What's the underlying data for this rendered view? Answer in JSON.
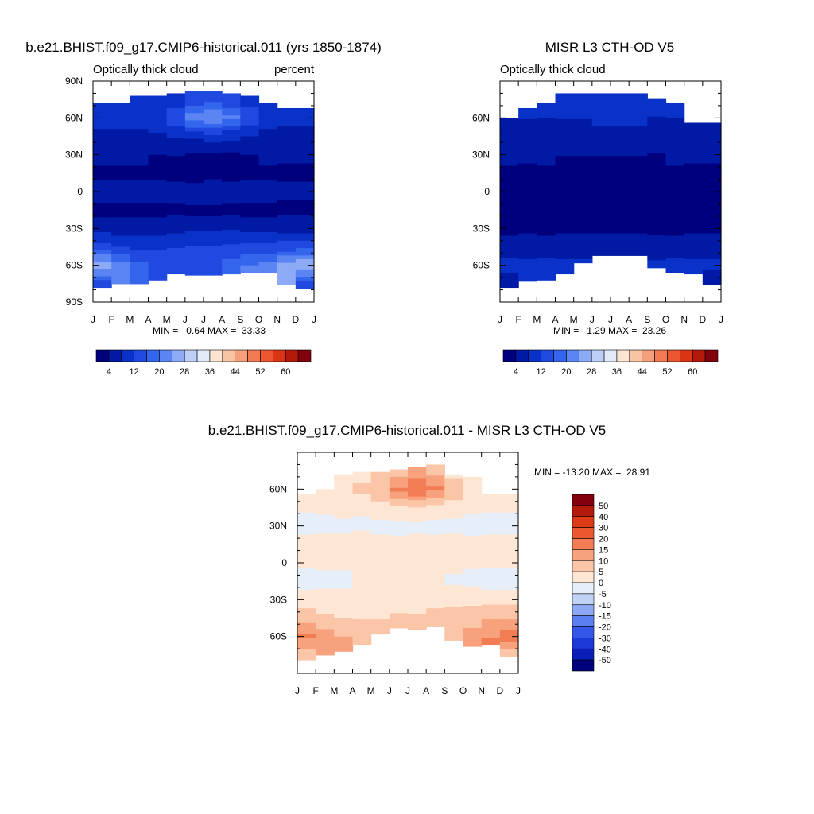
{
  "panels": [
    {
      "title": "b.e21.BHIST.f09_g17.CMIP6-historical.011 (yrs 1850-1874)",
      "left_label": "Optically thick cloud",
      "right_label": "percent",
      "stats": "MIN =   0.64 MAX =  33.33"
    },
    {
      "title": "MISR L3 CTH-OD V5",
      "left_label": "Optically thick cloud",
      "right_label": "",
      "stats": "MIN =   1.29 MAX =  23.26"
    },
    {
      "title": "b.e21.BHIST.f09_g17.CMIP6-historical.011 - MISR L3 CTH-OD V5",
      "left_label": "",
      "right_label": "",
      "stats": "MIN = -13.20 MAX =  28.91"
    }
  ],
  "colors": {
    "abs_palette": [
      "#00007f",
      "#001aa6",
      "#0a32c8",
      "#1f49df",
      "#3465ed",
      "#5b85f3",
      "#8daaf6",
      "#bccff7",
      "#e2ecf8",
      "#fde4d2",
      "#f9c4a4",
      "#f5a07b",
      "#f27b54",
      "#ec5630",
      "#da3415",
      "#b3180a",
      "#82000d"
    ],
    "diff_palette": [
      "#00007f",
      "#0a1fb8",
      "#1c3ad8",
      "#3457e8",
      "#5b7ff0",
      "#8fa8f3",
      "#c0d2f5",
      "#e6eef9",
      "#fde6d4",
      "#fbc6a8",
      "#f7a27d",
      "#f27c54",
      "#eb5830",
      "#dd3a18",
      "#b41a0a",
      "#82000d"
    ]
  },
  "chart_data": [
    {
      "type": "heatmap",
      "title": "b.e21.BHIST.f09_g17.CMIP6-historical.011 (yrs 1850-1874)",
      "variable": "Optically thick cloud",
      "units": "percent",
      "x_ticks": [
        "J",
        "F",
        "M",
        "A",
        "M",
        "J",
        "J",
        "A",
        "S",
        "O",
        "N",
        "D",
        "J"
      ],
      "y_ticks": [
        "90N",
        "60N",
        "30N",
        "0",
        "30S",
        "60S",
        "90S"
      ],
      "ylim": [
        -90,
        90
      ],
      "months": [
        1,
        2,
        3,
        4,
        5,
        6,
        7,
        8,
        9,
        10,
        11,
        12
      ],
      "lats": [
        75,
        60,
        45,
        30,
        15,
        0,
        -15,
        -30,
        -45,
        -60,
        -75
      ],
      "values": [
        [
          8,
          8,
          8,
          9,
          10,
          13,
          14,
          12,
          9,
          8,
          8,
          8
        ],
        [
          9,
          9,
          10,
          12,
          15,
          22,
          24,
          21,
          15,
          10,
          9,
          9
        ],
        [
          7,
          7,
          7,
          7,
          8,
          9,
          10,
          9,
          8,
          7,
          7,
          7
        ],
        [
          5,
          5,
          5,
          4,
          4,
          3,
          3,
          3,
          4,
          5,
          5,
          5
        ],
        [
          3,
          3,
          3,
          3,
          2,
          2,
          2,
          2,
          3,
          3,
          3,
          3
        ],
        [
          5,
          5,
          5,
          6,
          6,
          6,
          7,
          6,
          5,
          5,
          5,
          5
        ],
        [
          3,
          3,
          3,
          3,
          3,
          3,
          3,
          3,
          3,
          3,
          3,
          3
        ],
        [
          6,
          5,
          5,
          6,
          6,
          7,
          7,
          7,
          6,
          6,
          6,
          6
        ],
        [
          14,
          12,
          11,
          11,
          12,
          12,
          12,
          13,
          13,
          13,
          14,
          15
        ],
        [
          26,
          22,
          18,
          15,
          14,
          14,
          15,
          17,
          20,
          22,
          25,
          28
        ],
        [
          14,
          null,
          null,
          null,
          null,
          null,
          null,
          null,
          null,
          null,
          null,
          14
        ]
      ],
      "data_lat_extent": [
        [
          -78,
          72
        ],
        [
          -80,
          72
        ],
        [
          -78,
          78
        ],
        [
          -72,
          78
        ],
        [
          -67,
          80
        ],
        [
          -66,
          82
        ],
        [
          -66,
          82
        ],
        [
          -66,
          80
        ],
        [
          -66,
          78
        ],
        [
          -66,
          72
        ],
        [
          -74,
          68
        ],
        [
          -78,
          68
        ]
      ],
      "stats": {
        "min": 0.64,
        "max": 33.33
      },
      "colorbar": {
        "labels": [
          "4",
          "12",
          "20",
          "28",
          "36",
          "44",
          "52",
          "60"
        ],
        "levels": [
          4,
          8,
          12,
          16,
          20,
          24,
          28,
          32,
          36,
          40,
          44,
          48,
          52,
          56,
          60,
          64
        ]
      }
    },
    {
      "type": "heatmap",
      "title": "MISR L3 CTH-OD V5",
      "variable": "Optically thick cloud",
      "x_ticks": [
        "J",
        "F",
        "M",
        "A",
        "M",
        "J",
        "J",
        "A",
        "S",
        "O",
        "N",
        "D",
        "J"
      ],
      "y_ticks": [
        "60N",
        "30N",
        "0",
        "30S",
        "60S"
      ],
      "ylim": [
        -90,
        90
      ],
      "months": [
        1,
        2,
        3,
        4,
        5,
        6,
        7,
        8,
        9,
        10,
        11,
        12
      ],
      "lats": [
        75,
        60,
        45,
        30,
        15,
        0,
        -15,
        -30,
        -45,
        -60,
        -75
      ],
      "values": [
        [
          8,
          8,
          8,
          8,
          8,
          8,
          8,
          8,
          8,
          8,
          8,
          8
        ],
        [
          8,
          8,
          8,
          8,
          8,
          9,
          9,
          9,
          8,
          8,
          8,
          8
        ],
        [
          7,
          7,
          7,
          7,
          7,
          7,
          7,
          7,
          7,
          7,
          7,
          7
        ],
        [
          5,
          5,
          5,
          4,
          4,
          4,
          4,
          4,
          4,
          5,
          5,
          5
        ],
        [
          3,
          3,
          3,
          3,
          3,
          3,
          3,
          3,
          3,
          3,
          3,
          3
        ],
        [
          4,
          4,
          4,
          4,
          4,
          4,
          4,
          4,
          4,
          4,
          4,
          4
        ],
        [
          3,
          3,
          3,
          3,
          3,
          3,
          3,
          3,
          3,
          3,
          3,
          3
        ],
        [
          3,
          3,
          3,
          3,
          3,
          3,
          3,
          3,
          3,
          3,
          3,
          3
        ],
        [
          6,
          6,
          6,
          6,
          6,
          6,
          6,
          6,
          6,
          6,
          6,
          6
        ],
        [
          9,
          9,
          9,
          9,
          9,
          null,
          null,
          null,
          9,
          9,
          9,
          9
        ],
        [
          6,
          null,
          null,
          null,
          null,
          null,
          null,
          null,
          null,
          null,
          null,
          6
        ]
      ],
      "data_lat_extent": [
        [
          -78,
          60
        ],
        [
          -72,
          68
        ],
        [
          -72,
          72
        ],
        [
          -66,
          80
        ],
        [
          -58,
          80
        ],
        [
          -52,
          80
        ],
        [
          -52,
          80
        ],
        [
          -52,
          80
        ],
        [
          -62,
          76
        ],
        [
          -66,
          72
        ],
        [
          -66,
          56
        ],
        [
          -74,
          56
        ]
      ],
      "stats": {
        "min": 1.29,
        "max": 23.26
      },
      "colorbar": {
        "labels": [
          "4",
          "12",
          "20",
          "28",
          "36",
          "44",
          "52",
          "60"
        ],
        "levels": [
          4,
          8,
          12,
          16,
          20,
          24,
          28,
          32,
          36,
          40,
          44,
          48,
          52,
          56,
          60,
          64
        ]
      }
    },
    {
      "type": "heatmap",
      "title": "b.e21.BHIST.f09_g17.CMIP6-historical.011 - MISR L3 CTH-OD V5",
      "x_ticks": [
        "J",
        "F",
        "M",
        "A",
        "M",
        "J",
        "J",
        "A",
        "S",
        "O",
        "N",
        "D",
        "J"
      ],
      "y_ticks": [
        "60N",
        "30N",
        "0",
        "30S",
        "60S"
      ],
      "ylim": [
        -90,
        90
      ],
      "months": [
        1,
        2,
        3,
        4,
        5,
        6,
        7,
        8,
        9,
        10,
        11,
        12
      ],
      "lats": [
        75,
        60,
        45,
        30,
        15,
        0,
        -15,
        -30,
        -45,
        -60,
        -75
      ],
      "values": [
        [
          0,
          0,
          3,
          3,
          5,
          8,
          10,
          8,
          2,
          1,
          0,
          0
        ],
        [
          2,
          2,
          4,
          6,
          10,
          16,
          20,
          16,
          8,
          3,
          2,
          2
        ],
        [
          1,
          1,
          1,
          1,
          2,
          3,
          4,
          3,
          2,
          1,
          1,
          1
        ],
        [
          -2,
          -2,
          -1,
          -1,
          -1,
          -1,
          -1,
          -1,
          -1,
          -2,
          -2,
          -2
        ],
        [
          2,
          2,
          2,
          2,
          1,
          1,
          1,
          1,
          2,
          2,
          2,
          2
        ],
        [
          1,
          1,
          1,
          1,
          2,
          2,
          2,
          2,
          1,
          1,
          1,
          1
        ],
        [
          -2,
          -2,
          -2,
          1,
          1,
          1,
          1,
          1,
          -1,
          -2,
          -2,
          -2
        ],
        [
          2,
          2,
          2,
          2,
          2,
          2,
          2,
          3,
          3,
          3,
          3,
          3
        ],
        [
          8,
          6,
          5,
          5,
          5,
          6,
          6,
          7,
          8,
          8,
          9,
          10
        ],
        [
          16,
          13,
          10,
          7,
          null,
          null,
          null,
          null,
          9,
          12,
          15,
          18
        ],
        [
          6,
          null,
          null,
          null,
          null,
          null,
          null,
          null,
          null,
          null,
          null,
          6
        ]
      ],
      "data_lat_extent": [
        [
          -78,
          56
        ],
        [
          -74,
          60
        ],
        [
          -72,
          72
        ],
        [
          -66,
          74
        ],
        [
          -58,
          74
        ],
        [
          -52,
          76
        ],
        [
          -52,
          78
        ],
        [
          -52,
          80
        ],
        [
          -62,
          72
        ],
        [
          -66,
          70
        ],
        [
          -66,
          56
        ],
        [
          -74,
          56
        ]
      ],
      "stats": {
        "min": -13.2,
        "max": 28.91
      },
      "colorbar": {
        "labels": [
          "50",
          "40",
          "30",
          "20",
          "15",
          "10",
          "5",
          "0",
          "-5",
          "-10",
          "-15",
          "-20",
          "-30",
          "-40",
          "-50"
        ],
        "levels": [
          -50,
          -40,
          -30,
          -20,
          -15,
          -10,
          -5,
          0,
          5,
          10,
          15,
          20,
          30,
          40,
          50
        ]
      }
    }
  ]
}
